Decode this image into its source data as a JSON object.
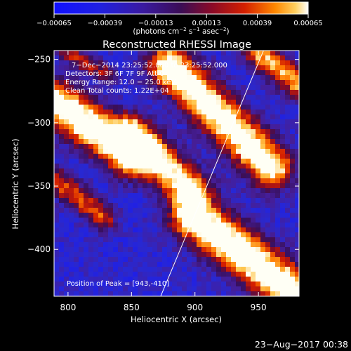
{
  "chart_data": {
    "type": "heatmap",
    "title": "Reconstructed RHESSI Image",
    "xlabel": "Heliocentric X (arcsec)",
    "ylabel": "Heliocentric Y (arcsec)",
    "xlim": [
      789,
      982
    ],
    "ylim": [
      -437,
      -243
    ],
    "x_ticks": [
      800,
      850,
      900,
      950
    ],
    "x_tick_labels": [
      "800",
      "850",
      "900",
      "950"
    ],
    "y_ticks": [
      -250,
      -300,
      -350,
      -400
    ],
    "y_tick_labels": [
      "−250",
      "−300",
      "−350",
      "−400"
    ],
    "colorbar": {
      "range": [
        -0.00065,
        0.00065
      ],
      "tick_values": [
        -0.00065,
        -0.00039,
        -0.00013,
        0.00013,
        0.00039,
        0.00065
      ],
      "tick_labels": [
        "−0.00065",
        "−0.00039",
        "−0.00013",
        "0.00013",
        "0.00039",
        "0.00065"
      ],
      "label_prefix": "(photons cm",
      "sup1": "−2",
      "label_mid1": " s",
      "sup2": "−1",
      "label_mid2": " asec",
      "sup3": "−2",
      "label_suffix": ")"
    },
    "annotations": [
      "7−Dec−2014 23:25:52.000 to 23:25:52.000",
      "Detectors: 3F 6F 7F 9F  Att 0",
      "Energy Range: 12.0 − 25.0 keV",
      "Clean     Total counts: 1.22E+04"
    ],
    "peak_label": "Position of Peak = [943,-410]",
    "peak_position": [
      943,
      -410
    ],
    "limb_line": [
      [
        873,
        -437
      ],
      [
        954,
        -243
      ]
    ],
    "bands": [
      {
        "x0": 789,
        "y0": -283,
        "x1": 850,
        "y1": -325,
        "width": 24,
        "amp": 1.0
      },
      {
        "x0": 850,
        "y0": -310,
        "x1": 895,
        "y1": -352,
        "width": 22,
        "amp": 0.85
      },
      {
        "x0": 880,
        "y0": -255,
        "x1": 960,
        "y1": -335,
        "width": 24,
        "amp": 0.95
      },
      {
        "x0": 790,
        "y0": -345,
        "x1": 828,
        "y1": -375,
        "width": 14,
        "amp": 0.55
      },
      {
        "x0": 900,
        "y0": -375,
        "x1": 982,
        "y1": -437,
        "width": 26,
        "amp": 1.0
      },
      {
        "x0": 950,
        "y0": -245,
        "x1": 982,
        "y1": -270,
        "width": 16,
        "amp": 0.7
      },
      {
        "x0": 800,
        "y0": -245,
        "x1": 830,
        "y1": -262,
        "width": 10,
        "amp": 0.45
      }
    ]
  },
  "footer": {
    "date": "23−Aug−2017 00:38"
  }
}
